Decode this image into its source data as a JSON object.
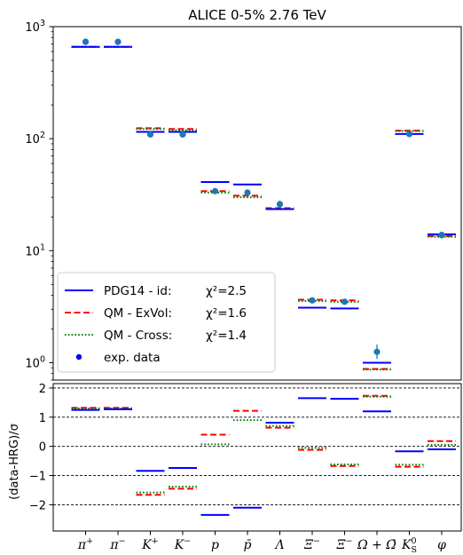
{
  "chart_data": [
    {
      "type": "scatter",
      "title": "ALICE 0-5% 2.76 TeV",
      "yscale": "log",
      "ylim": [
        0.7,
        1000
      ],
      "y_ticks": [
        1,
        10,
        100,
        1000
      ],
      "y_tick_labels": [
        [
          "10",
          "0"
        ],
        [
          "10",
          "1"
        ],
        [
          "10",
          "2"
        ],
        [
          "10",
          "3"
        ]
      ],
      "categories": [
        "π⁺",
        "π⁻",
        "K⁺",
        "K⁻",
        "p",
        "p̄",
        "Λ",
        "Ξ⁻",
        "Ξ̄⁻",
        "Ω + Ω̄",
        "K⁰S",
        "φ"
      ],
      "category_labels": [
        {
          "base": "π",
          "sup": "+"
        },
        {
          "base": "π",
          "sup": "−"
        },
        {
          "base": "K",
          "sup": "+"
        },
        {
          "base": "K",
          "sup": "−"
        },
        {
          "base": "p"
        },
        {
          "base": "p̄"
        },
        {
          "base": "Λ"
        },
        {
          "base": "Ξ",
          "sup": "−"
        },
        {
          "base": "Ξ̄",
          "sup": "−"
        },
        {
          "base": "Ω + Ω̄"
        },
        {
          "base": "K",
          "sup": "0",
          "sub": "S"
        },
        {
          "base": "φ"
        }
      ],
      "series": [
        {
          "name": "PDG14 - id:",
          "chi2": "χ²=2.5",
          "style": "solid",
          "color": "#0000ff",
          "values": [
            660,
            660,
            115,
            115,
            41,
            39,
            23.5,
            3.1,
            3.05,
            1.0,
            110,
            14
          ]
        },
        {
          "name": "QM - ExVol:",
          "chi2": "χ²=1.6",
          "style": "dashed",
          "color": "#ff0000",
          "values": [
            660,
            660,
            124,
            122,
            34,
            31,
            24,
            3.65,
            3.6,
            0.88,
            118,
            13.5
          ]
        },
        {
          "name": "QM - Cross:",
          "chi2": "χ²=1.4",
          "style": "dotted",
          "color": "#008000",
          "values": [
            660,
            660,
            122,
            119,
            33,
            30,
            23.6,
            3.55,
            3.5,
            0.87,
            117,
            13.3
          ]
        },
        {
          "name": "exp. data",
          "style": "points",
          "color": "#1f77b4",
          "values": [
            733,
            732,
            109,
            109,
            34,
            33,
            26,
            3.6,
            3.5,
            1.25,
            110,
            13.8
          ],
          "err_low": [
            700,
            700,
            105,
            104,
            32,
            31,
            24.3,
            3.45,
            3.35,
            1.08,
            105,
            12.8
          ],
          "err_high": [
            770,
            770,
            113,
            114,
            36,
            35,
            28,
            3.75,
            3.7,
            1.45,
            115,
            14.8
          ]
        }
      ],
      "legend_position": "lower-left"
    },
    {
      "type": "scatter",
      "ylabel": "(data-HRG)/σ",
      "ylim": [
        -2.9,
        2.15
      ],
      "y_ticks": [
        -2,
        -1,
        0,
        1,
        2
      ],
      "y_tick_labels": [
        "−2",
        "−1",
        "0",
        "1",
        "2"
      ],
      "reference_lines": [
        -2,
        -1,
        0,
        1,
        2
      ],
      "series": [
        {
          "name": "PDG14 - id:",
          "style": "solid",
          "color": "#0000ff",
          "values": [
            1.25,
            1.27,
            -0.84,
            -0.74,
            -2.35,
            -2.1,
            0.81,
            1.65,
            1.63,
            1.2,
            -0.17,
            -0.1
          ]
        },
        {
          "name": "QM - ExVol:",
          "style": "dashed",
          "color": "#ff0000",
          "values": [
            1.32,
            1.32,
            -1.66,
            -1.45,
            0.4,
            1.22,
            0.64,
            -0.12,
            -0.67,
            1.73,
            -0.7,
            0.18
          ]
        },
        {
          "name": "QM - Cross:",
          "style": "dotted",
          "color": "#008000",
          "values": [
            1.3,
            1.3,
            -1.58,
            -1.38,
            0.07,
            0.9,
            0.7,
            -0.05,
            -0.62,
            1.7,
            -0.63,
            0.05
          ]
        }
      ]
    }
  ]
}
